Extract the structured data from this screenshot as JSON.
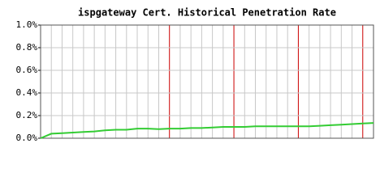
{
  "chart_data": {
    "type": "line",
    "title": "ispgateway Cert. Historical Penetration Rate",
    "x": [
      0,
      1,
      2,
      3,
      4,
      5,
      6,
      7,
      8,
      9,
      10,
      11,
      12,
      13,
      14,
      15,
      16,
      17,
      18,
      19,
      20,
      21,
      22,
      23,
      24,
      25,
      26,
      27,
      28,
      29,
      30,
      31
    ],
    "xlim": [
      0,
      31
    ],
    "series": [
      {
        "color": "#33cc33",
        "values": [
          0,
          0.04,
          0.045,
          0.05,
          0.055,
          0.06,
          0.07,
          0.075,
          0.075,
          0.085,
          0.085,
          0.08,
          0.085,
          0.085,
          0.09,
          0.09,
          0.095,
          0.1,
          0.1,
          0.1,
          0.105,
          0.105,
          0.105,
          0.105,
          0.105,
          0.105,
          0.11,
          0.115,
          0.12,
          0.125,
          0.13,
          0.135
        ]
      }
    ],
    "ylim": [
      0,
      1
    ],
    "yticks": [
      {
        "value": 0,
        "label": "0.0%"
      },
      {
        "value": 0.2,
        "label": "0.2%"
      },
      {
        "value": 0.4,
        "label": "0.4%"
      },
      {
        "value": 0.6,
        "label": "0.6%"
      },
      {
        "value": 0.8,
        "label": "0.8%"
      },
      {
        "value": 1,
        "label": "1.0%"
      }
    ],
    "grid": true
  }
}
